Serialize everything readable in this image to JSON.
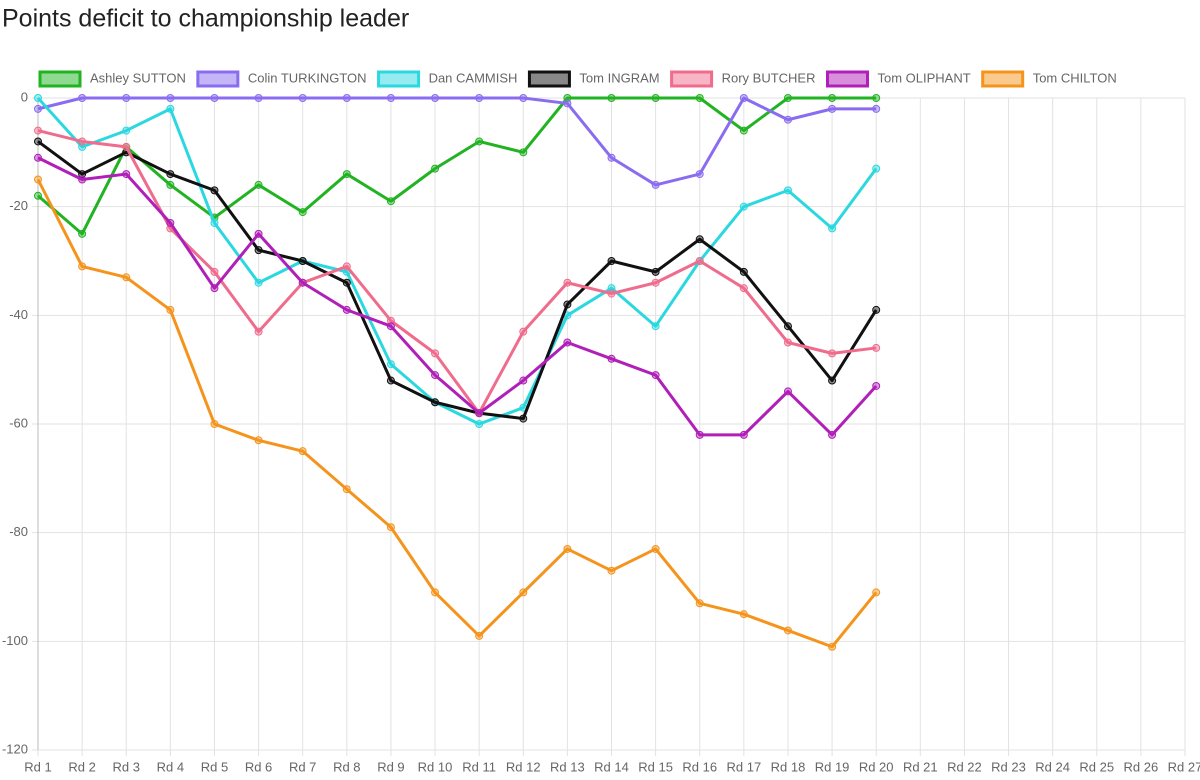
{
  "chart_data": {
    "type": "line",
    "title": "Points deficit to championship leader",
    "categories": [
      "Rd 1",
      "Rd 2",
      "Rd 3",
      "Rd 4",
      "Rd 5",
      "Rd 6",
      "Rd 7",
      "Rd 8",
      "Rd 9",
      "Rd 10",
      "Rd 11",
      "Rd 12",
      "Rd 13",
      "Rd 14",
      "Rd 15",
      "Rd 16",
      "Rd 17",
      "Rd 18",
      "Rd 19",
      "Rd 20",
      "Rd 21",
      "Rd 22",
      "Rd 23",
      "Rd 24",
      "Rd 25",
      "Rd 26",
      "Rd 27"
    ],
    "series": [
      {
        "name": "Ashley SUTTON",
        "color": "#22b322",
        "values": [
          -18,
          -25,
          -9,
          -16,
          -22,
          -16,
          -21,
          -14,
          -19,
          -13,
          -8,
          -10,
          0,
          0,
          0,
          0,
          -6,
          0,
          0,
          0,
          null,
          null,
          null,
          null,
          null,
          null,
          null
        ]
      },
      {
        "name": "Colin TURKINGTON",
        "color": "#8a6cf0",
        "values": [
          -2,
          0,
          0,
          0,
          0,
          0,
          0,
          0,
          0,
          0,
          0,
          0,
          -1,
          -11,
          -16,
          -14,
          0,
          -4,
          -2,
          -2,
          null,
          null,
          null,
          null,
          null,
          null,
          null
        ]
      },
      {
        "name": "Dan CAMMISH",
        "color": "#2bd8e0",
        "values": [
          0,
          -9,
          -6,
          -2,
          -23,
          -34,
          -30,
          -32,
          -49,
          -56,
          -60,
          -57,
          -40,
          -35,
          -42,
          -30,
          -20,
          -17,
          -24,
          -13,
          null,
          null,
          null,
          null,
          null,
          null,
          null
        ]
      },
      {
        "name": "Tom INGRAM",
        "color": "#111111",
        "values": [
          -8,
          -14,
          -10,
          -14,
          -17,
          -28,
          -30,
          -34,
          -52,
          -56,
          -58,
          -59,
          -38,
          -30,
          -32,
          -26,
          -32,
          -42,
          -52,
          -39,
          null,
          null,
          null,
          null,
          null,
          null,
          null
        ]
      },
      {
        "name": "Rory BUTCHER",
        "color": "#f06c8c",
        "values": [
          -6,
          -8,
          -9,
          -24,
          -32,
          -43,
          -34,
          -31,
          -41,
          -47,
          -58,
          -43,
          -34,
          -36,
          -34,
          -30,
          -35,
          -45,
          -47,
          -46,
          null,
          null,
          null,
          null,
          null,
          null,
          null
        ]
      },
      {
        "name": "Tom OLIPHANT",
        "color": "#b01fb8",
        "values": [
          -11,
          -15,
          -14,
          -23,
          -35,
          -25,
          -34,
          -39,
          -42,
          -51,
          -58,
          -52,
          -45,
          -48,
          -51,
          -62,
          -62,
          -54,
          -62,
          -53,
          null,
          null,
          null,
          null,
          null,
          null,
          null
        ]
      },
      {
        "name": "Tom CHILTON",
        "color": "#f5941d",
        "values": [
          -15,
          -31,
          -33,
          -39,
          -60,
          -63,
          -65,
          -72,
          -79,
          -91,
          -99,
          -91,
          -83,
          -87,
          -83,
          -93,
          -95,
          -98,
          -101,
          -91,
          null,
          null,
          null,
          null,
          null,
          null,
          null
        ]
      }
    ],
    "ylim": [
      -120,
      0
    ],
    "yticks": [
      0,
      -20,
      -40,
      -60,
      -80,
      -100,
      -120
    ],
    "grid": true,
    "legend": "top"
  }
}
